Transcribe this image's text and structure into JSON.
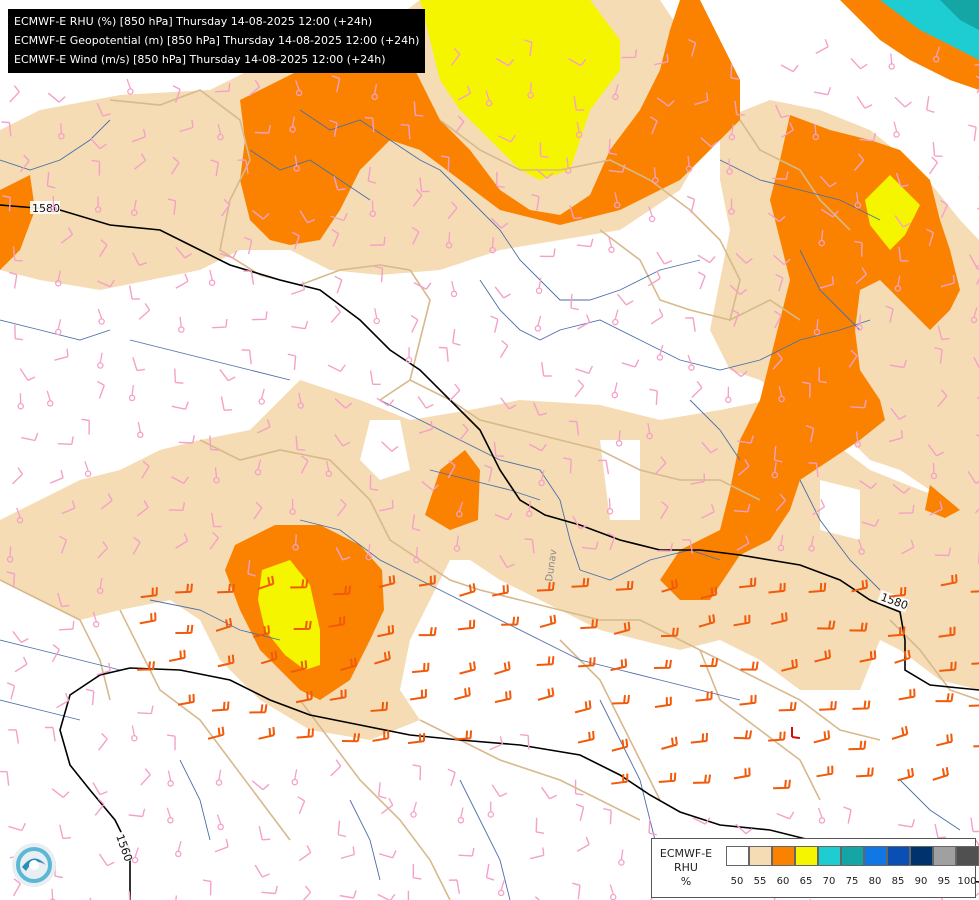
{
  "header": {
    "lines": [
      "ECMWF-E RHU (%) [850 hPa] Thursday 14-08-2025 12:00 (+24h)",
      "ECMWF-E Geopotential (m) [850 hPa] Thursday 14-08-2025 12:00 (+24h)",
      "ECMWF-E Wind (m/s) [850 hPa] Thursday 14-08-2025 12:00 (+24h)"
    ]
  },
  "contours": {
    "geopotential_labels": [
      "1580",
      "1580",
      "1560"
    ],
    "line_color": "#000000"
  },
  "map_labels": {
    "river": "Dunav"
  },
  "legend": {
    "title_lines": [
      "ECMWF-E",
      "RHU",
      "%"
    ],
    "ticks": [
      "50",
      "55",
      "60",
      "65",
      "70",
      "75",
      "80",
      "85",
      "90",
      "95",
      "100"
    ],
    "colors": [
      "#ffffff",
      "#f5dcb4",
      "#fa8200",
      "#f5f500",
      "#1ecdd2",
      "#14a5a5",
      "#0f78e6",
      "#0a50b4",
      "#00326e",
      "#a0a0a0",
      "#505050"
    ]
  },
  "field_colors": {
    "rhu_50_55": "#f5dcb4",
    "rhu_55_60": "#fa8200",
    "rhu_60_65": "#f5f500",
    "rhu_65_70": "#1ecdd2",
    "wind_strong": "#f05a0a",
    "wind_weak": "#f5a0c8",
    "rivers": "#4a6ea8",
    "borders": "#d7b98c"
  },
  "logo": {
    "icon": "ecmwf-logo-icon"
  }
}
